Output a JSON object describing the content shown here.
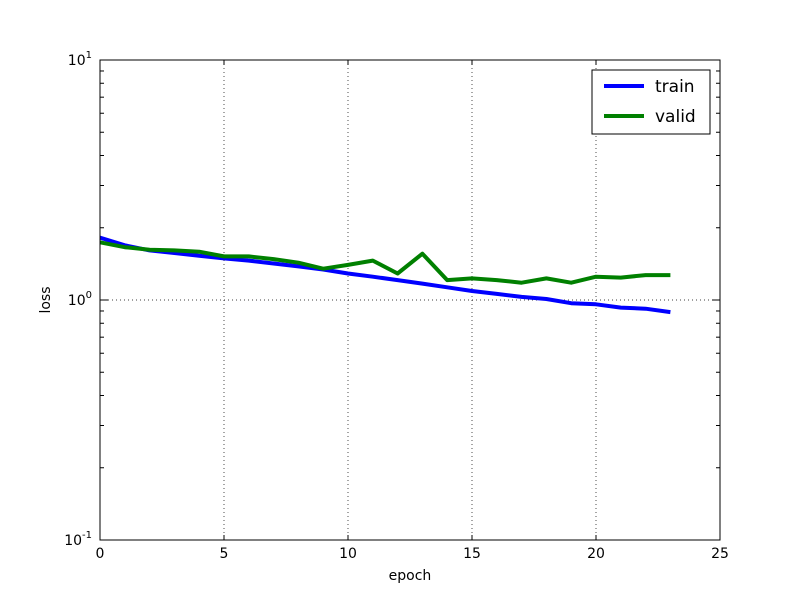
{
  "chart_data": {
    "type": "line",
    "title": "",
    "xlabel": "epoch",
    "ylabel": "loss",
    "xlim": [
      0,
      25
    ],
    "ylim": [
      0.1,
      10
    ],
    "yscale": "log",
    "grid": true,
    "legend_position": "top-right",
    "x_ticks": [
      0,
      5,
      10,
      15,
      20,
      25
    ],
    "y_ticks": [
      {
        "value": 0.1,
        "base": "10",
        "exp": "-1"
      },
      {
        "value": 1,
        "base": "10",
        "exp": "0"
      },
      {
        "value": 10,
        "base": "10",
        "exp": "1"
      }
    ],
    "x": [
      0,
      1,
      2,
      3,
      4,
      5,
      6,
      7,
      8,
      9,
      10,
      11,
      12,
      13,
      14,
      15,
      16,
      17,
      18,
      19,
      20,
      21,
      22,
      23
    ],
    "series": [
      {
        "name": "train",
        "color": "#0000ff",
        "values": [
          1.82,
          1.69,
          1.61,
          1.57,
          1.53,
          1.49,
          1.46,
          1.42,
          1.38,
          1.34,
          1.29,
          1.25,
          1.21,
          1.17,
          1.13,
          1.09,
          1.06,
          1.03,
          1.01,
          0.97,
          0.96,
          0.93,
          0.92,
          0.89
        ]
      },
      {
        "name": "valid",
        "color": "#008000",
        "values": [
          1.74,
          1.66,
          1.62,
          1.61,
          1.59,
          1.52,
          1.52,
          1.48,
          1.43,
          1.35,
          1.4,
          1.46,
          1.29,
          1.56,
          1.21,
          1.23,
          1.21,
          1.18,
          1.23,
          1.18,
          1.25,
          1.24,
          1.27,
          1.27
        ]
      }
    ]
  }
}
